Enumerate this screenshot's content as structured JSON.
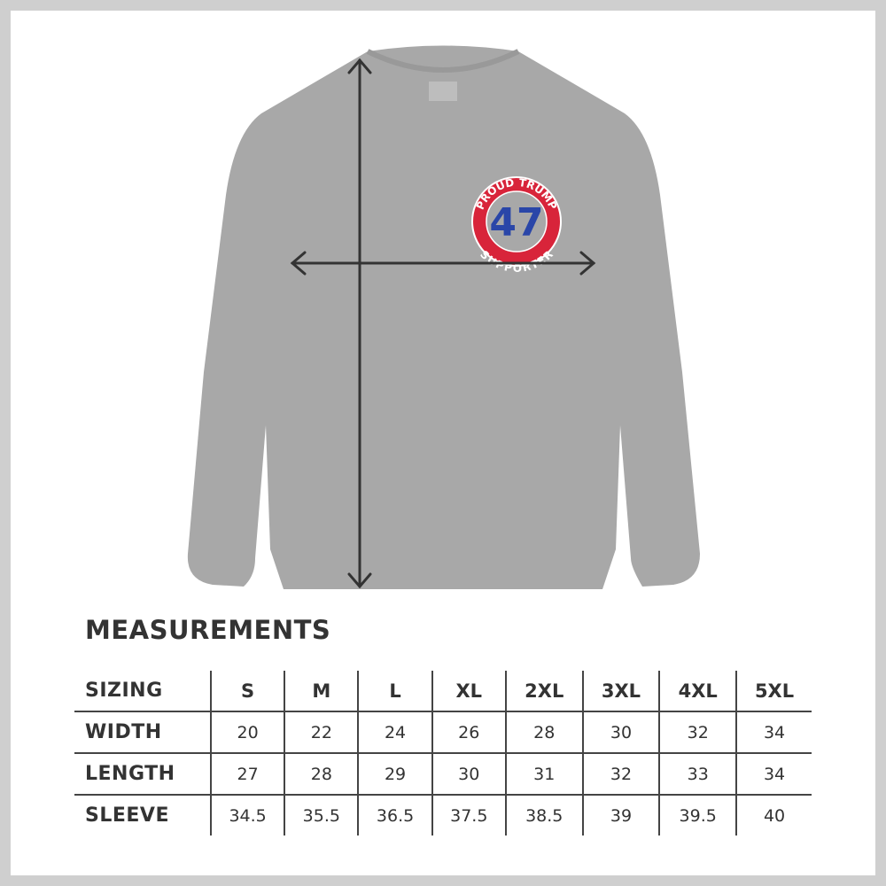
{
  "logo": {
    "top_text": "PROUD TRUMP",
    "number": "47",
    "bottom_text": "SUPPORTER",
    "colors": {
      "ring": "#d8243a",
      "number": "#2a46a8"
    }
  },
  "shirt_color": "#a8a8a8",
  "measurements": {
    "title": "MEASUREMENTS",
    "header": {
      "label": "SIZING",
      "sizes": [
        "S",
        "M",
        "L",
        "XL",
        "2XL",
        "3XL",
        "4XL",
        "5XL"
      ]
    },
    "rows": [
      {
        "label": "WIDTH",
        "values": [
          "20",
          "22",
          "24",
          "26",
          "28",
          "30",
          "32",
          "34"
        ]
      },
      {
        "label": "LENGTH",
        "values": [
          "27",
          "28",
          "29",
          "30",
          "31",
          "32",
          "33",
          "34"
        ]
      },
      {
        "label": "SLEEVE",
        "values": [
          "34.5",
          "35.5",
          "36.5",
          "37.5",
          "38.5",
          "39",
          "39.5",
          "40"
        ]
      }
    ]
  }
}
